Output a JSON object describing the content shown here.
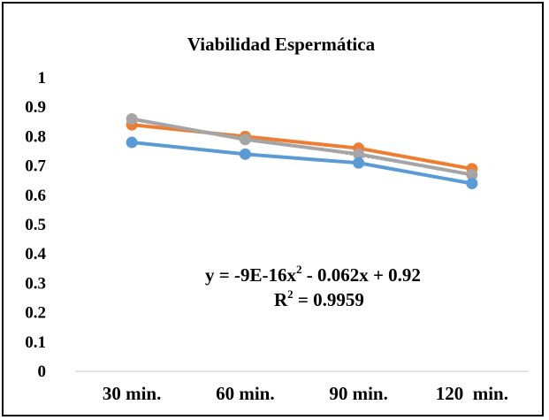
{
  "chart_data": {
    "type": "line",
    "title": "Viabilidad  Espermática",
    "categories": [
      "30 min.",
      "60 min.",
      "90 min.",
      "120  min."
    ],
    "y_ticks": [
      "0",
      "0.1",
      "0.2",
      "0.3",
      "0.4",
      "0.5",
      "0.6",
      "0.7",
      "0.8",
      "0.9",
      "1"
    ],
    "ylim": [
      0,
      1
    ],
    "grid": false,
    "legend": "none",
    "series": [
      {
        "color": "#ed7d31",
        "values": [
          0.84,
          0.8,
          0.76,
          0.69
        ]
      },
      {
        "color": "#a5a5a5",
        "values": [
          0.86,
          0.79,
          0.74,
          0.67
        ]
      },
      {
        "color": "#5b9bd5",
        "values": [
          0.78,
          0.74,
          0.71,
          0.64
        ]
      }
    ],
    "trendline": {
      "color": "#a5a5a5",
      "coefficients": [
        -9e-16,
        -0.062,
        0.92
      ]
    },
    "annotation": {
      "equation_prefix": "y = -9E-16x",
      "equation_exp": "2",
      "equation_suffix": " - 0.062x + 0.92",
      "r2_prefix": "R",
      "r2_exp": "2",
      "r2_suffix": " = 0.9959"
    }
  }
}
